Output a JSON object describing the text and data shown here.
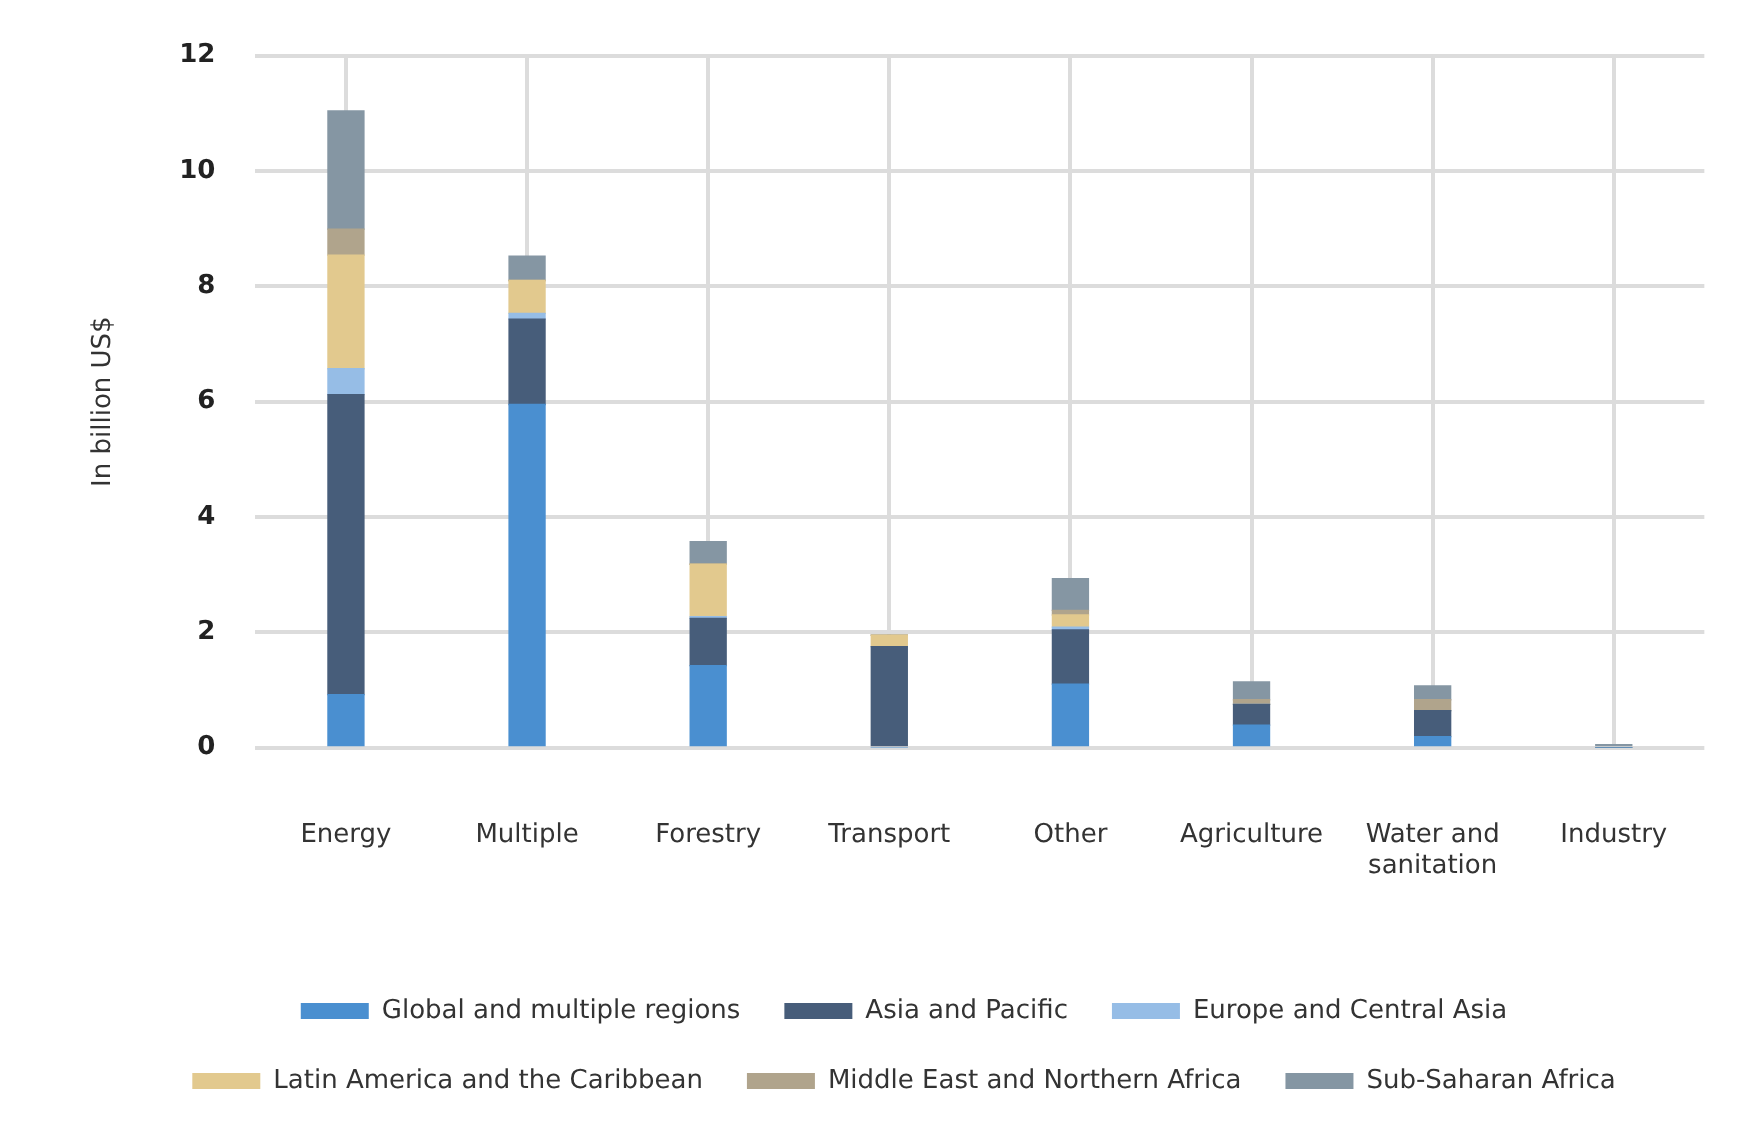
{
  "chart_data": {
    "type": "bar",
    "stacked": true,
    "ylabel": "In billion US$",
    "categories": [
      "Energy",
      "Multiple",
      "Forestry",
      "Transport",
      "Other",
      "Agriculture",
      "Water and sanitation",
      "Industry"
    ],
    "series": [
      {
        "name": "Global and multiple regions",
        "color": "#4a8fd0",
        "values": [
          0.92,
          5.95,
          1.42,
          0,
          1.1,
          0.39,
          0.19,
          0
        ]
      },
      {
        "name": "Asia and Pacific",
        "color": "#475d7a",
        "values": [
          5.2,
          1.48,
          0.82,
          1.75,
          0.94,
          0.36,
          0.45,
          0
        ]
      },
      {
        "name": "Europe and Central Asia",
        "color": "#96bde6",
        "values": [
          0.45,
          0.1,
          0.03,
          0,
          0.05,
          0,
          0,
          0
        ]
      },
      {
        "name": "Latin America and the Caribbean",
        "color": "#e2c98e",
        "values": [
          1.97,
          0.57,
          0.91,
          0.2,
          0.21,
          0,
          0,
          0
        ]
      },
      {
        "name": "Middle East and Northern Africa",
        "color": "#b0a48c",
        "values": [
          0.45,
          0,
          0,
          0,
          0.08,
          0.08,
          0.19,
          0
        ]
      },
      {
        "name": "Sub-Saharan Africa",
        "color": "#8596a3",
        "values": [
          2.05,
          0.42,
          0.39,
          0,
          0.55,
          0.31,
          0.24,
          0.05
        ]
      }
    ],
    "ylim": [
      0,
      12
    ],
    "yticks": [
      0,
      2,
      4,
      6,
      8,
      10,
      12
    ],
    "grid": true,
    "legend": "bottom"
  }
}
